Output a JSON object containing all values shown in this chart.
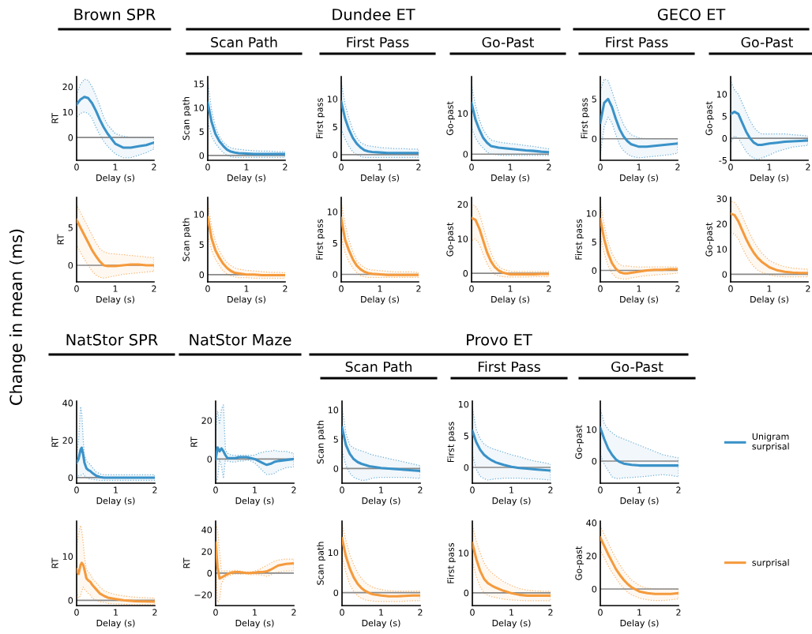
{
  "chart_data": [
    {
      "type": "other",
      "annotations": [
        "Brown SPR",
        "Dundee ET",
        "GECO ET",
        "NatStor SPR",
        "NatStor Maze",
        "Provo ET"
      ],
      "ylabel": "Change in mean (ms)"
    },
    {
      "type": "line",
      "xlabel": "Delay (s)",
      "ylabel": "RT",
      "x": [
        0,
        0.1,
        0.2,
        0.3,
        0.4,
        0.5,
        0.6,
        0.7,
        0.8,
        1.0,
        1.2,
        1.4,
        1.6,
        1.8,
        2.0
      ],
      "xlim": [
        0,
        2
      ],
      "xticks": [
        0,
        1,
        2
      ],
      "ylim": [
        -9,
        24
      ],
      "yticks": [
        0,
        10,
        20
      ],
      "ref_lines": [
        {
          "axis": "y",
          "value": 0,
          "color": "#888888"
        }
      ],
      "series": [
        {
          "color": "#3a92c8",
          "values": [
            13,
            15,
            16,
            15.5,
            13.5,
            10.5,
            7,
            4,
            1.5,
            -2.5,
            -4,
            -4,
            -3.5,
            -3,
            -2
          ],
          "upper": [
            17,
            21,
            23,
            22.5,
            20,
            16.5,
            12.5,
            8,
            5,
            1.5,
            0.5,
            0,
            0,
            0,
            0
          ],
          "lower": [
            8,
            9.5,
            10,
            9.5,
            7.5,
            4,
            1,
            -1.5,
            -3.5,
            -6.5,
            -8,
            -8,
            -7,
            -6,
            -4.5
          ]
        }
      ]
    },
    {
      "type": "line",
      "title": "Scan Path",
      "xlabel": "Delay (s)",
      "ylabel": "Scan path",
      "x": [
        0,
        0.1,
        0.2,
        0.3,
        0.4,
        0.5,
        0.6,
        0.7,
        0.8,
        1.0,
        1.2,
        1.4,
        1.6,
        1.8,
        2.0
      ],
      "xlim": [
        0,
        2
      ],
      "xticks": [
        0,
        1,
        2
      ],
      "ylim": [
        -1,
        16.5
      ],
      "yticks": [
        0,
        5,
        10,
        15
      ],
      "ref_lines": [
        {
          "axis": "y",
          "value": 0,
          "color": "#888888"
        }
      ],
      "series": [
        {
          "color": "#3a92c8",
          "values": [
            11,
            7,
            4.5,
            3,
            2,
            1.2,
            0.8,
            0.6,
            0.5,
            0.4,
            0.3,
            0.3,
            0.3,
            0.3,
            0.3
          ],
          "upper": [
            15.5,
            9.5,
            6,
            4,
            2.8,
            2,
            1.6,
            1.4,
            1.3,
            1.1,
            1,
            0.9,
            0.9,
            0.8,
            0.8
          ],
          "lower": [
            7,
            4,
            2.5,
            1.5,
            0.6,
            0,
            -0.3,
            -0.4,
            -0.4,
            -0.4,
            -0.4,
            -0.4,
            -0.4,
            -0.4,
            -0.4
          ]
        }
      ]
    },
    {
      "type": "line",
      "title": "First Pass",
      "xlabel": "Delay (s)",
      "ylabel": "First pass",
      "x": [
        0,
        0.1,
        0.2,
        0.3,
        0.4,
        0.5,
        0.6,
        0.7,
        0.8,
        1.0,
        1.2,
        1.4,
        1.6,
        1.8,
        2.0
      ],
      "xlim": [
        0,
        2
      ],
      "xticks": [
        0,
        1,
        2
      ],
      "ylim": [
        -1,
        14
      ],
      "yticks": [
        0,
        5,
        10
      ],
      "ref_lines": [
        {
          "axis": "y",
          "value": 0,
          "color": "#888888"
        }
      ],
      "series": [
        {
          "color": "#3a92c8",
          "values": [
            9.5,
            6.5,
            4.5,
            3,
            2,
            1.3,
            0.8,
            0.6,
            0.5,
            0.4,
            0.3,
            0.3,
            0.3,
            0.3,
            0.3
          ],
          "upper": [
            13,
            9,
            6.5,
            4.5,
            3,
            2.2,
            1.8,
            1.6,
            1.5,
            1.3,
            1.2,
            1.1,
            1.1,
            1,
            1
          ],
          "lower": [
            4.5,
            2.8,
            1.5,
            0.5,
            0,
            -0.3,
            -0.5,
            -0.5,
            -0.5,
            -0.5,
            -0.5,
            -0.5,
            -0.5,
            -0.5,
            -0.5
          ]
        }
      ]
    },
    {
      "type": "line",
      "title": "Go-Past",
      "xlabel": "Delay (s)",
      "ylabel": "Go-past",
      "x": [
        0,
        0.1,
        0.2,
        0.3,
        0.4,
        0.5,
        0.6,
        0.7,
        0.8,
        1.0,
        1.2,
        1.4,
        1.6,
        1.8,
        2.0
      ],
      "xlim": [
        0,
        2
      ],
      "xticks": [
        0,
        1,
        2
      ],
      "ylim": [
        -1.5,
        19
      ],
      "yticks": [
        0,
        10
      ],
      "ref_lines": [
        {
          "axis": "y",
          "value": 0,
          "color": "#888888"
        }
      ],
      "series": [
        {
          "color": "#3a92c8",
          "values": [
            12.5,
            8.5,
            6,
            4,
            2.8,
            2,
            1.8,
            1.6,
            1.5,
            1.3,
            1.1,
            0.9,
            0.8,
            0.6,
            0.5
          ],
          "upper": [
            17,
            12,
            8.5,
            6,
            4.5,
            3.5,
            3.2,
            3,
            2.8,
            2.6,
            2.4,
            2.1,
            1.9,
            1.6,
            1.3
          ],
          "lower": [
            6.5,
            4,
            2.5,
            1.5,
            0.5,
            0,
            -0.1,
            -0.2,
            -0.3,
            -0.3,
            -0.3,
            -0.3,
            -0.3,
            -0.3,
            -0.3
          ]
        }
      ]
    },
    {
      "type": "line",
      "title": "First Pass",
      "xlabel": "Delay (s)",
      "ylabel": "First pass",
      "x": [
        0,
        0.1,
        0.2,
        0.3,
        0.4,
        0.5,
        0.6,
        0.7,
        0.8,
        1.0,
        1.2,
        1.4,
        1.6,
        1.8,
        2.0
      ],
      "xlim": [
        0,
        2
      ],
      "xticks": [
        0,
        1,
        2
      ],
      "ylim": [
        -2.7,
        7.8
      ],
      "yticks": [
        0,
        5
      ],
      "ref_lines": [
        {
          "axis": "y",
          "value": 0,
          "color": "#888888"
        }
      ],
      "series": [
        {
          "color": "#3a92c8",
          "values": [
            2,
            4.5,
            5,
            4,
            2.5,
            1.2,
            0.3,
            -0.3,
            -0.7,
            -1,
            -1,
            -0.9,
            -0.8,
            -0.7,
            -0.6
          ],
          "upper": [
            6,
            7.5,
            7.3,
            6,
            4.5,
            3,
            1.8,
            1,
            0.5,
            0.1,
            0,
            0,
            0,
            0,
            0
          ],
          "lower": [
            -2,
            1.5,
            2.7,
            2,
            0.5,
            -0.8,
            -1.5,
            -1.9,
            -2.2,
            -2.4,
            -2.3,
            -2.2,
            -2.1,
            -2,
            -1.8
          ]
        }
      ]
    },
    {
      "type": "line",
      "title": "Go-Past",
      "xlabel": "Delay (s)",
      "ylabel": "Go-past",
      "x": [
        0,
        0.1,
        0.2,
        0.3,
        0.4,
        0.5,
        0.6,
        0.7,
        0.8,
        1.0,
        1.2,
        1.4,
        1.6,
        1.8,
        2.0
      ],
      "xlim": [
        0,
        2
      ],
      "xticks": [
        0,
        1,
        2
      ],
      "ylim": [
        -5,
        14
      ],
      "yticks": [
        -5,
        0,
        5,
        10
      ],
      "ref_lines": [
        {
          "axis": "y",
          "value": 0,
          "color": "#888888"
        }
      ],
      "series": [
        {
          "color": "#3a92c8",
          "values": [
            5.5,
            6,
            5.5,
            3.5,
            1.5,
            0,
            -1,
            -1.5,
            -1.5,
            -1.2,
            -1,
            -0.8,
            -0.7,
            -0.6,
            -0.5
          ],
          "upper": [
            13,
            11,
            10,
            8,
            6,
            4,
            2.5,
            1.5,
            1,
            1,
            1,
            1,
            0.8,
            0.7,
            0.5
          ],
          "lower": [
            -1,
            0.5,
            0,
            -1.5,
            -3,
            -4,
            -4.5,
            -4.8,
            -4.5,
            -3.8,
            -3,
            -2.5,
            -2,
            -1.8,
            -1.6
          ]
        }
      ]
    },
    {
      "type": "line",
      "xlabel": "Delay (s)",
      "ylabel": "RT",
      "x": [
        0,
        0.1,
        0.2,
        0.3,
        0.4,
        0.5,
        0.6,
        0.7,
        0.8,
        1.0,
        1.2,
        1.4,
        1.6,
        1.8,
        2.0
      ],
      "xlim": [
        0,
        2
      ],
      "xticks": [
        0,
        1,
        2
      ],
      "ylim": [
        -2.2,
        9
      ],
      "yticks": [
        0,
        5
      ],
      "ref_lines": [
        {
          "axis": "y",
          "value": 0,
          "color": "#888888"
        }
      ],
      "series": [
        {
          "color": "#f59a3c",
          "values": [
            6,
            5,
            4,
            3,
            2,
            1.2,
            0.5,
            0,
            -0.1,
            -0.1,
            0,
            0.1,
            0.1,
            0,
            0
          ],
          "upper": [
            8,
            7,
            6,
            5,
            4,
            3,
            2.2,
            1.8,
            1.6,
            1.5,
            1.4,
            1.3,
            1.2,
            1.1,
            1
          ],
          "lower": [
            2.7,
            1.7,
            0.8,
            0,
            -0.8,
            -1.3,
            -1.6,
            -1.7,
            -1.6,
            -1.4,
            -1.2,
            -1.1,
            -1,
            -0.9,
            -0.8
          ]
        }
      ]
    },
    {
      "type": "line",
      "xlabel": "Delay (s)",
      "ylabel": "Scan path",
      "x": [
        0,
        0.1,
        0.2,
        0.3,
        0.4,
        0.5,
        0.6,
        0.7,
        0.8,
        1.0,
        1.2,
        1.4,
        1.6,
        1.8,
        2.0
      ],
      "xlim": [
        0,
        2
      ],
      "xticks": [
        0,
        1,
        2
      ],
      "ylim": [
        -1.2,
        12.8
      ],
      "yticks": [
        0,
        5,
        10
      ],
      "ref_lines": [
        {
          "axis": "y",
          "value": 0,
          "color": "#888888"
        }
      ],
      "series": [
        {
          "color": "#f59a3c",
          "values": [
            9.5,
            6,
            4,
            2.8,
            1.8,
            1.1,
            0.6,
            0.3,
            0.2,
            0,
            0,
            -0.1,
            -0.1,
            -0.1,
            -0.1
          ],
          "upper": [
            12,
            8,
            5.5,
            4,
            2.8,
            2,
            1.5,
            1.1,
            0.9,
            0.7,
            0.6,
            0.5,
            0.4,
            0.4,
            0.3
          ],
          "lower": [
            6.5,
            4,
            2.5,
            1.5,
            0.6,
            0.1,
            -0.2,
            -0.4,
            -0.5,
            -0.5,
            -0.6,
            -0.6,
            -0.6,
            -0.6,
            -0.6
          ]
        }
      ]
    },
    {
      "type": "line",
      "xlabel": "Delay (s)",
      "ylabel": "First pass",
      "x": [
        0,
        0.1,
        0.2,
        0.3,
        0.4,
        0.5,
        0.6,
        0.7,
        0.8,
        1.0,
        1.2,
        1.4,
        1.6,
        1.8,
        2.0
      ],
      "xlim": [
        0,
        2
      ],
      "xticks": [
        0,
        1,
        2
      ],
      "ylim": [
        -1.2,
        12.3
      ],
      "yticks": [
        0,
        5,
        10
      ],
      "ref_lines": [
        {
          "axis": "y",
          "value": 0,
          "color": "#888888"
        }
      ],
      "series": [
        {
          "color": "#f59a3c",
          "values": [
            9,
            5.5,
            3.8,
            2.4,
            1.4,
            0.8,
            0.4,
            0.2,
            0.1,
            0,
            -0.1,
            -0.1,
            -0.1,
            -0.1,
            -0.1
          ],
          "upper": [
            11.5,
            8,
            5.5,
            3.6,
            2.2,
            1.5,
            1.1,
            0.8,
            0.7,
            0.6,
            0.5,
            0.4,
            0.4,
            0.4,
            0.3
          ],
          "lower": [
            6,
            3.5,
            2,
            1,
            0.3,
            -0.2,
            -0.4,
            -0.5,
            -0.5,
            -0.5,
            -0.5,
            -0.5,
            -0.5,
            -0.5,
            -0.5
          ]
        }
      ]
    },
    {
      "type": "line",
      "xlabel": "Delay (s)",
      "ylabel": "Go-past",
      "x": [
        0,
        0.1,
        0.2,
        0.3,
        0.4,
        0.5,
        0.6,
        0.7,
        0.8,
        1.0,
        1.2,
        1.4,
        1.6,
        1.8,
        2.0
      ],
      "xlim": [
        0,
        2
      ],
      "xticks": [
        0,
        1,
        2
      ],
      "ylim": [
        -2.5,
        22
      ],
      "yticks": [
        0,
        10,
        20
      ],
      "ref_lines": [
        {
          "axis": "y",
          "value": 0,
          "color": "#888888"
        }
      ],
      "series": [
        {
          "color": "#f59a3c",
          "values": [
            16,
            15.5,
            13,
            9.5,
            6,
            3.5,
            1.8,
            0.8,
            0.2,
            -0.3,
            -0.3,
            -0.3,
            -0.3,
            -0.2,
            -0.2
          ],
          "upper": [
            20,
            19.5,
            17.5,
            13.5,
            9.5,
            6,
            3.5,
            2,
            1.2,
            0.6,
            0.5,
            0.5,
            0.5,
            0.5,
            0.5
          ],
          "lower": [
            9.5,
            10,
            8.5,
            5.5,
            2.8,
            0.8,
            -0.3,
            -0.8,
            -1,
            -1.1,
            -1.1,
            -1.1,
            -1,
            -1,
            -1
          ]
        }
      ]
    },
    {
      "type": "line",
      "xlabel": "Delay (s)",
      "ylabel": "First pass",
      "x": [
        0,
        0.1,
        0.2,
        0.3,
        0.4,
        0.5,
        0.6,
        0.7,
        0.8,
        1.0,
        1.2,
        1.4,
        1.6,
        1.8,
        2.0
      ],
      "xlim": [
        0,
        2
      ],
      "xticks": [
        0,
        1,
        2
      ],
      "ylim": [
        -2,
        12.8
      ],
      "yticks": [
        0,
        5,
        10
      ],
      "ref_lines": [
        {
          "axis": "y",
          "value": 0,
          "color": "#888888"
        }
      ],
      "series": [
        {
          "color": "#f59a3c",
          "values": [
            9,
            5.5,
            3,
            1.3,
            0.3,
            -0.3,
            -0.5,
            -0.5,
            -0.4,
            -0.2,
            0,
            0.1,
            0.1,
            0.2,
            0.2
          ],
          "upper": [
            12,
            8,
            5,
            3,
            1.8,
            1,
            0.8,
            0.8,
            0.7,
            0.6,
            0.6,
            0.6,
            0.6,
            0.6,
            0.6
          ],
          "lower": [
            6,
            3,
            0.8,
            -0.5,
            -1.2,
            -1.4,
            -1.5,
            -1.5,
            -1.3,
            -1.1,
            -0.9,
            -0.8,
            -0.7,
            -0.6,
            -0.5
          ]
        }
      ]
    },
    {
      "type": "line",
      "xlabel": "Delay (s)",
      "ylabel": "Go-past",
      "x": [
        0,
        0.1,
        0.2,
        0.3,
        0.4,
        0.5,
        0.6,
        0.7,
        0.8,
        1.0,
        1.2,
        1.4,
        1.6,
        1.8,
        2.0
      ],
      "xlim": [
        0,
        2
      ],
      "xticks": [
        0,
        1,
        2
      ],
      "ylim": [
        -3,
        30.5
      ],
      "yticks": [
        0,
        10,
        20,
        30
      ],
      "ref_lines": [
        {
          "axis": "y",
          "value": 0,
          "color": "#888888"
        }
      ],
      "series": [
        {
          "color": "#f59a3c",
          "values": [
            24,
            23.5,
            21,
            17.5,
            14,
            11,
            8.5,
            6.5,
            5,
            2.8,
            1.6,
            1,
            0.7,
            0.5,
            0.5
          ],
          "upper": [
            29,
            28.5,
            26.5,
            23,
            19.5,
            16,
            13,
            10.5,
            8.5,
            5.5,
            4,
            3,
            2.5,
            2.2,
            2
          ],
          "lower": [
            16.5,
            16,
            14,
            10.5,
            7.5,
            5,
            3,
            1.6,
            0.8,
            -0.2,
            -0.8,
            -1,
            -1,
            -1,
            -1
          ]
        }
      ]
    },
    {
      "type": "line",
      "xlabel": "Delay (s)",
      "ylabel": "RT",
      "x": [
        0,
        0.05,
        0.1,
        0.13,
        0.17,
        0.2,
        0.25,
        0.3,
        0.35,
        0.4,
        0.5,
        0.6,
        0.7,
        0.8,
        1.0,
        1.2,
        1.5,
        2.0
      ],
      "xlim": [
        0,
        2
      ],
      "xticks": [
        0,
        1,
        2
      ],
      "ylim": [
        -3,
        41
      ],
      "yticks": [
        0,
        20,
        40
      ],
      "ref_lines": [
        {
          "axis": "y",
          "value": 0,
          "color": "#888888"
        }
      ],
      "series": [
        {
          "color": "#3a92c8",
          "values": [
            8,
            10,
            15,
            16,
            12,
            8,
            5,
            4,
            3.5,
            2.5,
            1,
            0.3,
            0,
            0,
            0,
            0,
            0,
            0
          ],
          "upper": [
            12,
            20,
            38,
            35,
            20,
            12,
            9,
            8,
            7,
            5.5,
            3,
            2,
            1.5,
            1.5,
            1.5,
            1.5,
            1.5,
            1.5
          ],
          "lower": [
            2,
            1,
            1,
            1.5,
            2,
            1,
            0,
            -0.5,
            -0.8,
            -1,
            -1.2,
            -1.5,
            -1.5,
            -1.5,
            -1.5,
            -1.5,
            -1.5,
            -1.5
          ]
        }
      ]
    },
    {
      "type": "line",
      "xlabel": "Delay (s)",
      "ylabel": "RT",
      "x": [
        0,
        0.05,
        0.1,
        0.15,
        0.2,
        0.25,
        0.3,
        0.4,
        0.5,
        0.6,
        0.7,
        0.8,
        0.9,
        1.0,
        1.1,
        1.2,
        1.3,
        1.4,
        1.5,
        1.6,
        1.8,
        2.0
      ],
      "xlim": [
        0,
        2
      ],
      "xticks": [
        0,
        1,
        2
      ],
      "ylim": [
        -12.5,
        30
      ],
      "yticks": [
        0,
        20
      ],
      "ref_lines": [
        {
          "axis": "y",
          "value": 0,
          "color": "#888888"
        }
      ],
      "series": [
        {
          "color": "#3a92c8",
          "values": [
            0,
            6,
            4,
            5.5,
            4,
            2,
            0.5,
            0.5,
            0.5,
            1,
            1,
            1,
            0.5,
            0,
            -1,
            -2,
            -3,
            -2.5,
            -1.5,
            -1,
            -0.5,
            0
          ],
          "upper": [
            15,
            25,
            18,
            26,
            28,
            5,
            3,
            2,
            2,
            2,
            2,
            2,
            2,
            2,
            3,
            3.5,
            4,
            4,
            4.5,
            4,
            4,
            3
          ],
          "lower": [
            -12,
            -10,
            0,
            -4,
            -10,
            0,
            -1,
            -1.5,
            -1.5,
            -1,
            -1,
            -0.5,
            -1,
            -2,
            -4,
            -6,
            -8,
            -8,
            -7.5,
            -6,
            -4.5,
            -4
          ]
        }
      ]
    },
    {
      "type": "line",
      "title": "Scan Path",
      "xlabel": "Delay (s)",
      "ylabel": "Scan path",
      "x": [
        0,
        0.1,
        0.2,
        0.3,
        0.4,
        0.5,
        0.6,
        0.7,
        0.8,
        1.0,
        1.2,
        1.4,
        1.6,
        1.8,
        2.0
      ],
      "xlim": [
        0,
        2
      ],
      "xticks": [
        0,
        1,
        2
      ],
      "ylim": [
        -2.5,
        11.5
      ],
      "yticks": [
        0,
        5,
        10
      ],
      "ref_lines": [
        {
          "axis": "y",
          "value": 0,
          "color": "#888888"
        }
      ],
      "series": [
        {
          "color": "#3a92c8",
          "values": [
            7,
            4,
            2.5,
            1.6,
            1.1,
            0.8,
            0.6,
            0.4,
            0.3,
            0.1,
            0,
            -0.1,
            -0.2,
            -0.3,
            -0.4
          ],
          "upper": [
            10.5,
            6,
            4,
            3.5,
            3.2,
            3,
            2.8,
            2.5,
            2.3,
            2,
            1.7,
            1.4,
            1.1,
            0.8,
            0.5
          ],
          "lower": [
            3,
            0.5,
            -0.8,
            -1.5,
            -1.8,
            -2,
            -2,
            -1.8,
            -1.6,
            -1.5,
            -1.5,
            -1.5,
            -1.5,
            -1.6,
            -1.7
          ]
        }
      ]
    },
    {
      "type": "line",
      "title": "First Pass",
      "xlabel": "Delay (s)",
      "ylabel": "First pass",
      "x": [
        0,
        0.1,
        0.2,
        0.3,
        0.4,
        0.5,
        0.6,
        0.7,
        0.8,
        1.0,
        1.2,
        1.4,
        1.6,
        1.8,
        2.0
      ],
      "xlim": [
        0,
        2
      ],
      "xticks": [
        0,
        1,
        2
      ],
      "ylim": [
        -2.5,
        10.5
      ],
      "yticks": [
        0,
        5,
        10
      ],
      "ref_lines": [
        {
          "axis": "y",
          "value": 0,
          "color": "#888888"
        }
      ],
      "series": [
        {
          "color": "#3a92c8",
          "values": [
            5.8,
            4,
            2.8,
            2,
            1.5,
            1.1,
            0.8,
            0.6,
            0.4,
            0.1,
            -0.1,
            -0.2,
            -0.3,
            -0.4,
            -0.5
          ],
          "upper": [
            9.5,
            6,
            4.5,
            3.7,
            3.3,
            3,
            2.8,
            2.6,
            2.4,
            2,
            1.7,
            1.3,
            1,
            0.8,
            0.5
          ],
          "lower": [
            2,
            -0.3,
            -1.4,
            -1.8,
            -2,
            -1.9,
            -1.8,
            -1.8,
            -1.7,
            -1.7,
            -1.7,
            -1.8,
            -1.8,
            -1.9,
            -2
          ]
        }
      ]
    },
    {
      "type": "line",
      "title": "Go-Past",
      "xlabel": "Delay (s)",
      "ylabel": "Go-past",
      "x": [
        0,
        0.1,
        0.2,
        0.3,
        0.4,
        0.5,
        0.6,
        0.7,
        0.8,
        1.0,
        1.2,
        1.4,
        1.6,
        1.8,
        2.0
      ],
      "xlim": [
        0,
        2
      ],
      "xticks": [
        0,
        1,
        2
      ],
      "ylim": [
        -7,
        19
      ],
      "yticks": [
        0,
        10
      ],
      "ref_lines": [
        {
          "axis": "y",
          "value": 0,
          "color": "#888888"
        }
      ],
      "legend": "right",
      "series": [
        {
          "name": "Unigram\nsurprisal",
          "color": "#3a92c8",
          "values": [
            10.5,
            7,
            4,
            2,
            0.5,
            -0.3,
            -0.8,
            -1,
            -1.2,
            -1.4,
            -1.4,
            -1.4,
            -1.4,
            -1.4,
            -1.4
          ],
          "upper": [
            16.5,
            12,
            10,
            9,
            8,
            7.5,
            7,
            6.5,
            6,
            5,
            4,
            3,
            2,
            1.5,
            1
          ],
          "lower": [
            2,
            -1,
            -3,
            -5,
            -5.5,
            -5.5,
            -5.3,
            -5.3,
            -5.2,
            -5,
            -4.8,
            -4.5,
            -4.3,
            -4.5,
            -5
          ]
        }
      ]
    },
    {
      "type": "line",
      "xlabel": "Delay (s)",
      "ylabel": "RT",
      "x": [
        0,
        0.05,
        0.1,
        0.13,
        0.17,
        0.2,
        0.25,
        0.3,
        0.35,
        0.4,
        0.5,
        0.6,
        0.7,
        0.8,
        1.0,
        1.2,
        1.5,
        2.0
      ],
      "xlim": [
        0,
        2
      ],
      "xticks": [
        0,
        1,
        2
      ],
      "ylim": [
        -1.2,
        18
      ],
      "yticks": [
        0,
        10
      ],
      "ref_lines": [
        {
          "axis": "y",
          "value": 0,
          "color": "#888888"
        }
      ],
      "series": [
        {
          "color": "#f59a3c",
          "values": [
            7,
            6,
            8,
            8.5,
            8,
            7,
            5,
            4.5,
            4.2,
            3.5,
            2.5,
            1.5,
            1,
            0.6,
            0.3,
            0,
            -0.2,
            -0.3
          ],
          "upper": [
            12,
            15,
            17,
            16,
            13,
            10,
            7,
            6.5,
            6,
            5,
            4,
            3,
            2.2,
            1.8,
            1.3,
            1,
            0.7,
            0.5
          ],
          "lower": [
            2,
            0.5,
            1,
            2,
            3,
            2.5,
            2,
            1.5,
            1.2,
            0.5,
            0,
            -0.3,
            -0.5,
            -0.7,
            -0.8,
            -0.9,
            -1,
            -1
          ]
        }
      ]
    },
    {
      "type": "line",
      "xlabel": "Delay (s)",
      "ylabel": "RT",
      "x": [
        0,
        0.05,
        0.1,
        0.15,
        0.2,
        0.25,
        0.3,
        0.4,
        0.5,
        0.6,
        0.7,
        0.8,
        0.9,
        1.0,
        1.1,
        1.2,
        1.3,
        1.4,
        1.5,
        1.6,
        1.8,
        2.0
      ],
      "xlim": [
        0,
        2
      ],
      "xticks": [
        0,
        1,
        2
      ],
      "ylim": [
        -30,
        48
      ],
      "yticks": [
        {
          "value": -20,
          "label": "−20"
        },
        0,
        20,
        40
      ],
      "ref_lines": [
        {
          "axis": "y",
          "value": 0,
          "color": "#888888"
        }
      ],
      "series": [
        {
          "color": "#f59a3c",
          "values": [
            28,
            5,
            -5,
            -4,
            -3,
            -2,
            -1,
            0.5,
            1,
            1,
            0.5,
            0,
            0,
            0.5,
            1,
            1,
            1.5,
            3,
            5,
            7,
            8.5,
            9
          ],
          "upper": [
            45,
            40,
            20,
            2,
            2,
            2,
            2,
            2,
            2.5,
            2,
            1.5,
            1,
            1,
            2,
            3,
            5,
            7,
            9,
            11,
            12,
            13,
            13
          ],
          "lower": [
            5,
            -27,
            -25,
            -10,
            -6,
            -4,
            -3,
            -1.5,
            -1,
            -1,
            -1,
            -1,
            -1.5,
            -1.5,
            -1.5,
            -2,
            -3,
            -2,
            0,
            1,
            2,
            2
          ]
        }
      ]
    },
    {
      "type": "line",
      "xlabel": "Delay (s)",
      "ylabel": "Scan path",
      "x": [
        0,
        0.1,
        0.2,
        0.3,
        0.4,
        0.5,
        0.6,
        0.7,
        0.8,
        1.0,
        1.2,
        1.4,
        1.6,
        1.8,
        2.0
      ],
      "xlim": [
        0,
        2
      ],
      "xticks": [
        0,
        1,
        2
      ],
      "ylim": [
        -3.2,
        17.8
      ],
      "yticks": [
        0,
        10
      ],
      "ref_lines": [
        {
          "axis": "y",
          "value": 0,
          "color": "#888888"
        }
      ],
      "series": [
        {
          "color": "#f59a3c",
          "values": [
            13.5,
            9,
            6,
            3.8,
            2.2,
            1.1,
            0.4,
            -0.1,
            -0.4,
            -0.7,
            -0.9,
            -0.9,
            -0.8,
            -0.7,
            -0.7
          ],
          "upper": [
            17,
            13,
            9.5,
            7,
            5,
            3.5,
            2.5,
            1.8,
            1.3,
            0.8,
            0.5,
            0.4,
            0.4,
            0.4,
            0.4
          ],
          "lower": [
            9,
            5,
            2,
            0.3,
            -0.8,
            -1.4,
            -1.8,
            -2,
            -2.1,
            -2.2,
            -2.2,
            -2.2,
            -2.1,
            -2,
            -2
          ]
        }
      ]
    },
    {
      "type": "line",
      "xlabel": "Delay (s)",
      "ylabel": "First pass",
      "x": [
        0,
        0.1,
        0.2,
        0.3,
        0.4,
        0.5,
        0.6,
        0.7,
        0.8,
        1.0,
        1.2,
        1.4,
        1.6,
        1.8,
        2.0
      ],
      "xlim": [
        0,
        2
      ],
      "xticks": [
        0,
        1,
        2
      ],
      "ylim": [
        -3.2,
        18
      ],
      "yticks": [
        0,
        10
      ],
      "ref_lines": [
        {
          "axis": "y",
          "value": 0,
          "color": "#888888"
        }
      ],
      "series": [
        {
          "color": "#f59a3c",
          "values": [
            12.5,
            8.5,
            5.5,
            3.5,
            2.4,
            1.8,
            1.3,
            0.9,
            0.5,
            -0.1,
            -0.5,
            -0.7,
            -0.7,
            -0.7,
            -0.7
          ],
          "upper": [
            17,
            13,
            10,
            7.5,
            6,
            5,
            4.2,
            3.5,
            2.8,
            1.8,
            1.1,
            0.7,
            0.5,
            0.4,
            0.4
          ],
          "lower": [
            8,
            4,
            1.5,
            0,
            -0.7,
            -1,
            -1.2,
            -1.4,
            -1.6,
            -1.8,
            -1.9,
            -2,
            -2,
            -2,
            -2
          ]
        }
      ]
    },
    {
      "type": "line",
      "xlabel": "Delay (s)",
      "ylabel": "Go-past",
      "x": [
        0,
        0.1,
        0.2,
        0.3,
        0.4,
        0.5,
        0.6,
        0.7,
        0.8,
        1.0,
        1.2,
        1.4,
        1.6,
        1.8,
        2.0
      ],
      "xlim": [
        0,
        2
      ],
      "xticks": [
        0,
        1,
        2
      ],
      "ylim": [
        -10,
        41
      ],
      "yticks": [
        0,
        20,
        40
      ],
      "ref_lines": [
        {
          "axis": "y",
          "value": 0,
          "color": "#888888"
        }
      ],
      "legend": "right",
      "series": [
        {
          "name": "surprisal",
          "color": "#f59a3c",
          "values": [
            31,
            26,
            21,
            16.5,
            12,
            8.5,
            5.5,
            3,
            1,
            -1.5,
            -2.5,
            -3,
            -3,
            -3,
            -2.5
          ],
          "upper": [
            38,
            33,
            28,
            23,
            18.5,
            14.5,
            11,
            8,
            5.5,
            2,
            0.5,
            0,
            0,
            0,
            0
          ],
          "lower": [
            23,
            19,
            14,
            10,
            6.5,
            3,
            0.5,
            -2,
            -3.5,
            -5.5,
            -6.5,
            -7,
            -7,
            -6.5,
            -6
          ]
        }
      ]
    }
  ]
}
